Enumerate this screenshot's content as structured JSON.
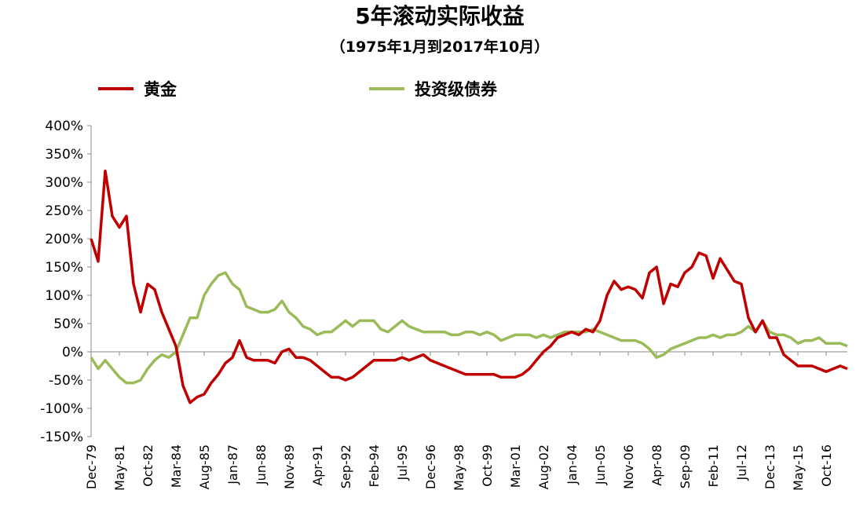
{
  "chart_data": {
    "type": "line",
    "title": "5年滚动实际收益",
    "subtitle": "（1975年1月到2017年10月）",
    "categories": [
      "Dec-79",
      null,
      null,
      null,
      "May-81",
      null,
      null,
      null,
      "Oct-82",
      null,
      null,
      null,
      "Mar-84",
      null,
      null,
      null,
      "Aug-85",
      null,
      null,
      null,
      "Jan-87",
      null,
      null,
      null,
      "Jun-88",
      null,
      null,
      null,
      "Nov-89",
      null,
      null,
      null,
      "Apr-91",
      null,
      null,
      null,
      "Sep-92",
      null,
      null,
      null,
      "Feb-94",
      null,
      null,
      null,
      "Jul-95",
      null,
      null,
      null,
      "Dec-96",
      null,
      null,
      null,
      "May-98",
      null,
      null,
      null,
      "Oct-99",
      null,
      null,
      null,
      "Mar-01",
      null,
      null,
      null,
      "Aug-02",
      null,
      null,
      null,
      "Jan-04",
      null,
      null,
      null,
      "Jun-05",
      null,
      null,
      null,
      "Nov-06",
      null,
      null,
      null,
      "Apr-08",
      null,
      null,
      null,
      "Sep-09",
      null,
      null,
      null,
      "Feb-11",
      null,
      null,
      null,
      "Jul-12",
      null,
      null,
      null,
      "Dec-13",
      null,
      null,
      null,
      "May-15",
      null,
      null,
      null,
      "Oct-16",
      null,
      null,
      null
    ],
    "series": [
      {
        "name": "黄金",
        "color": "#c00000",
        "values": [
          200,
          160,
          320,
          240,
          220,
          240,
          120,
          70,
          120,
          110,
          70,
          40,
          10,
          -60,
          -90,
          -80,
          -75,
          -55,
          -40,
          -20,
          -10,
          20,
          -10,
          -15,
          -15,
          -15,
          -20,
          0,
          5,
          -10,
          -10,
          -15,
          -25,
          -35,
          -45,
          -45,
          -50,
          -45,
          -35,
          -25,
          -15,
          -15,
          -15,
          -15,
          -10,
          -15,
          -10,
          -5,
          -15,
          -20,
          -25,
          -30,
          -35,
          -40,
          -40,
          -40,
          -40,
          -40,
          -45,
          -45,
          -45,
          -40,
          -30,
          -15,
          0,
          10,
          25,
          30,
          35,
          30,
          40,
          35,
          55,
          100,
          125,
          110,
          115,
          110,
          95,
          140,
          150,
          85,
          120,
          115,
          140,
          150,
          175,
          170,
          130,
          165,
          145,
          125,
          120,
          60,
          35,
          55,
          25,
          25,
          -5,
          -15,
          -25,
          -25,
          -25,
          -30,
          -35,
          -30,
          -25,
          -30
        ]
      },
      {
        "name": "投资级债券",
        "color": "#9bbb59",
        "values": [
          -10,
          -30,
          -15,
          -30,
          -45,
          -55,
          -55,
          -50,
          -30,
          -15,
          -5,
          -10,
          0,
          30,
          60,
          60,
          100,
          120,
          135,
          140,
          120,
          110,
          80,
          75,
          70,
          70,
          75,
          90,
          70,
          60,
          45,
          40,
          30,
          35,
          35,
          45,
          55,
          45,
          55,
          55,
          55,
          40,
          35,
          45,
          55,
          45,
          40,
          35,
          35,
          35,
          35,
          30,
          30,
          35,
          35,
          30,
          35,
          30,
          20,
          25,
          30,
          30,
          30,
          25,
          30,
          25,
          30,
          35,
          35,
          35,
          35,
          40,
          35,
          30,
          25,
          20,
          20,
          20,
          15,
          5,
          -10,
          -5,
          5,
          10,
          15,
          20,
          25,
          25,
          30,
          25,
          30,
          30,
          35,
          45,
          35,
          55,
          35,
          30,
          30,
          25,
          15,
          20,
          20,
          25,
          15,
          15,
          15,
          10
        ]
      }
    ],
    "ylim": [
      -150,
      400
    ],
    "yticks": [
      {
        "value": -150,
        "label": "-150%"
      },
      {
        "value": -100,
        "label": "-100%"
      },
      {
        "value": -50,
        "label": "-50%"
      },
      {
        "value": 0,
        "label": "0%"
      },
      {
        "value": 50,
        "label": "50%"
      },
      {
        "value": 100,
        "label": "100%"
      },
      {
        "value": 150,
        "label": "150%"
      },
      {
        "value": 200,
        "label": "200%"
      },
      {
        "value": 250,
        "label": "250%"
      },
      {
        "value": 300,
        "label": "300%"
      },
      {
        "value": 350,
        "label": "350%"
      },
      {
        "value": 400,
        "label": "400%"
      }
    ],
    "legend": "top",
    "grid": false
  }
}
